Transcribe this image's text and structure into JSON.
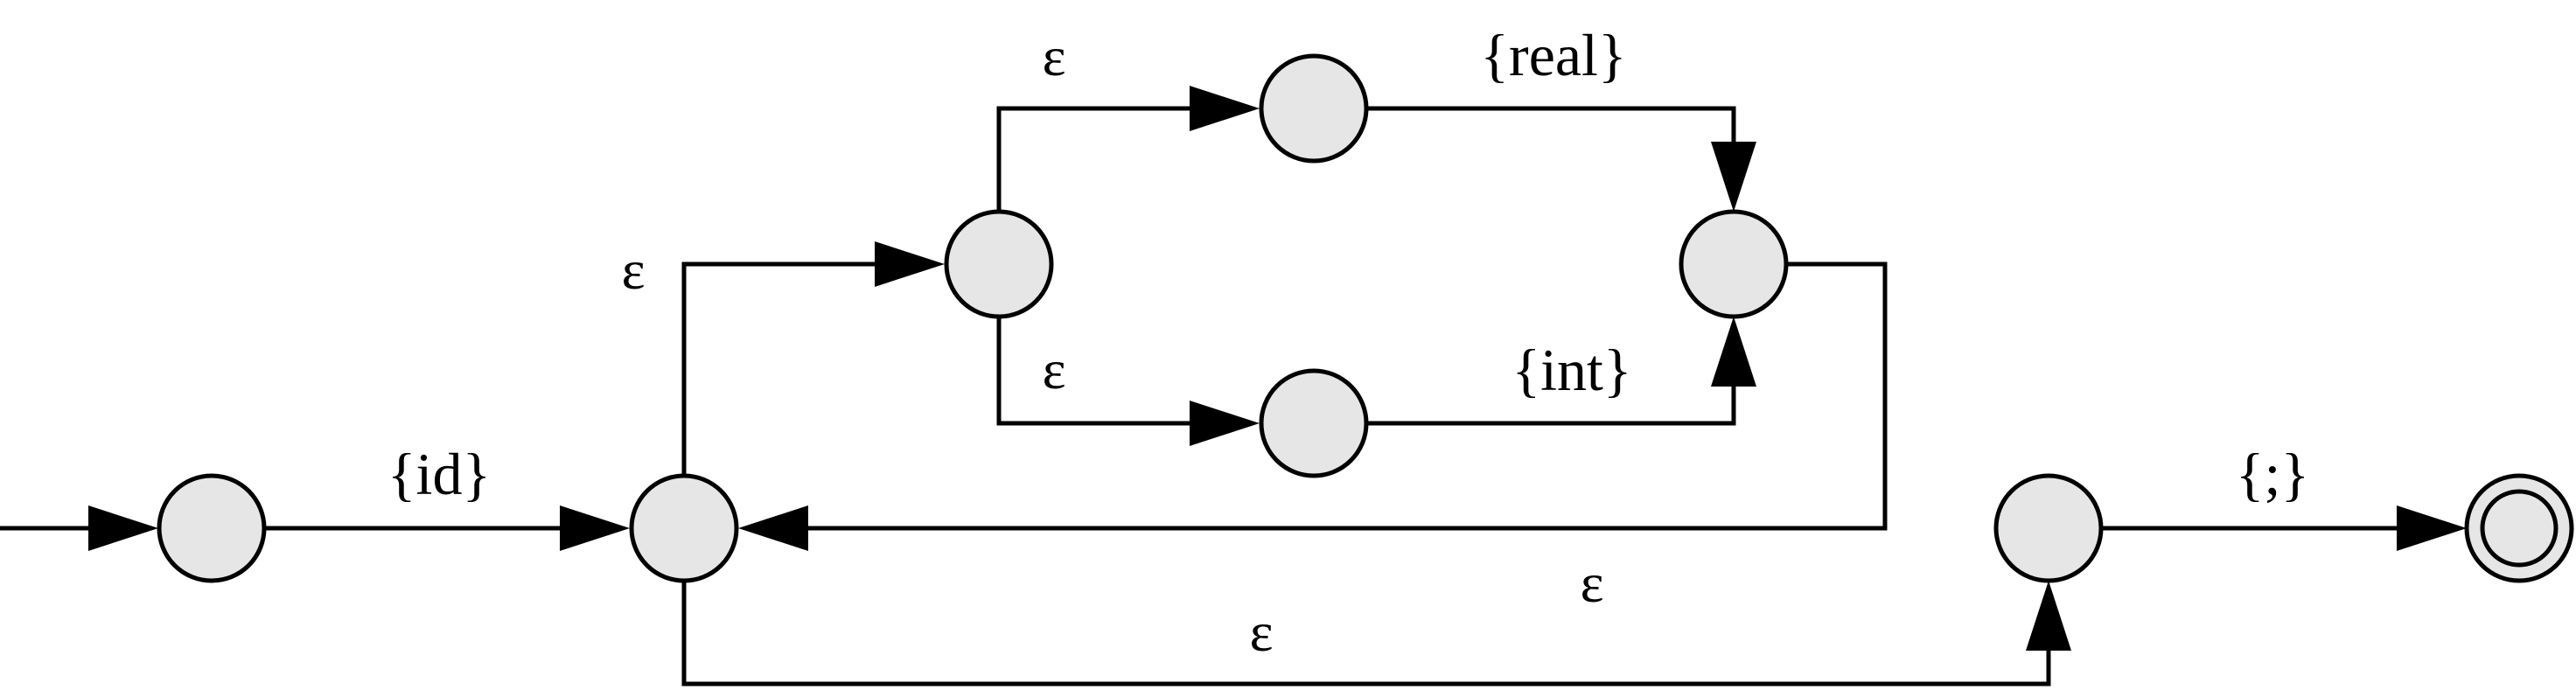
{
  "diagram": {
    "type": "finite-automaton",
    "colors": {
      "node_fill": "#e6e6e6",
      "stroke": "#000000",
      "background": "#ffffff"
    },
    "states": [
      "s0",
      "s1",
      "s2",
      "s3",
      "s4",
      "s5",
      "s6",
      "s7"
    ],
    "start_state": "s0",
    "accept_state": "s7",
    "transitions": [
      {
        "from": "s0",
        "to": "s1",
        "label": "{id}"
      },
      {
        "from": "s1",
        "to": "s2",
        "label": "ε"
      },
      {
        "from": "s2",
        "to": "s3",
        "label": "ε"
      },
      {
        "from": "s2",
        "to": "s4",
        "label": "ε"
      },
      {
        "from": "s3",
        "to": "s5",
        "label": "{real}"
      },
      {
        "from": "s4",
        "to": "s5",
        "label": "{int}"
      },
      {
        "from": "s5",
        "to": "s1",
        "label": "ε"
      },
      {
        "from": "s1",
        "to": "s6",
        "label": "ε"
      },
      {
        "from": "s6",
        "to": "s7",
        "label": "{;}"
      }
    ]
  }
}
